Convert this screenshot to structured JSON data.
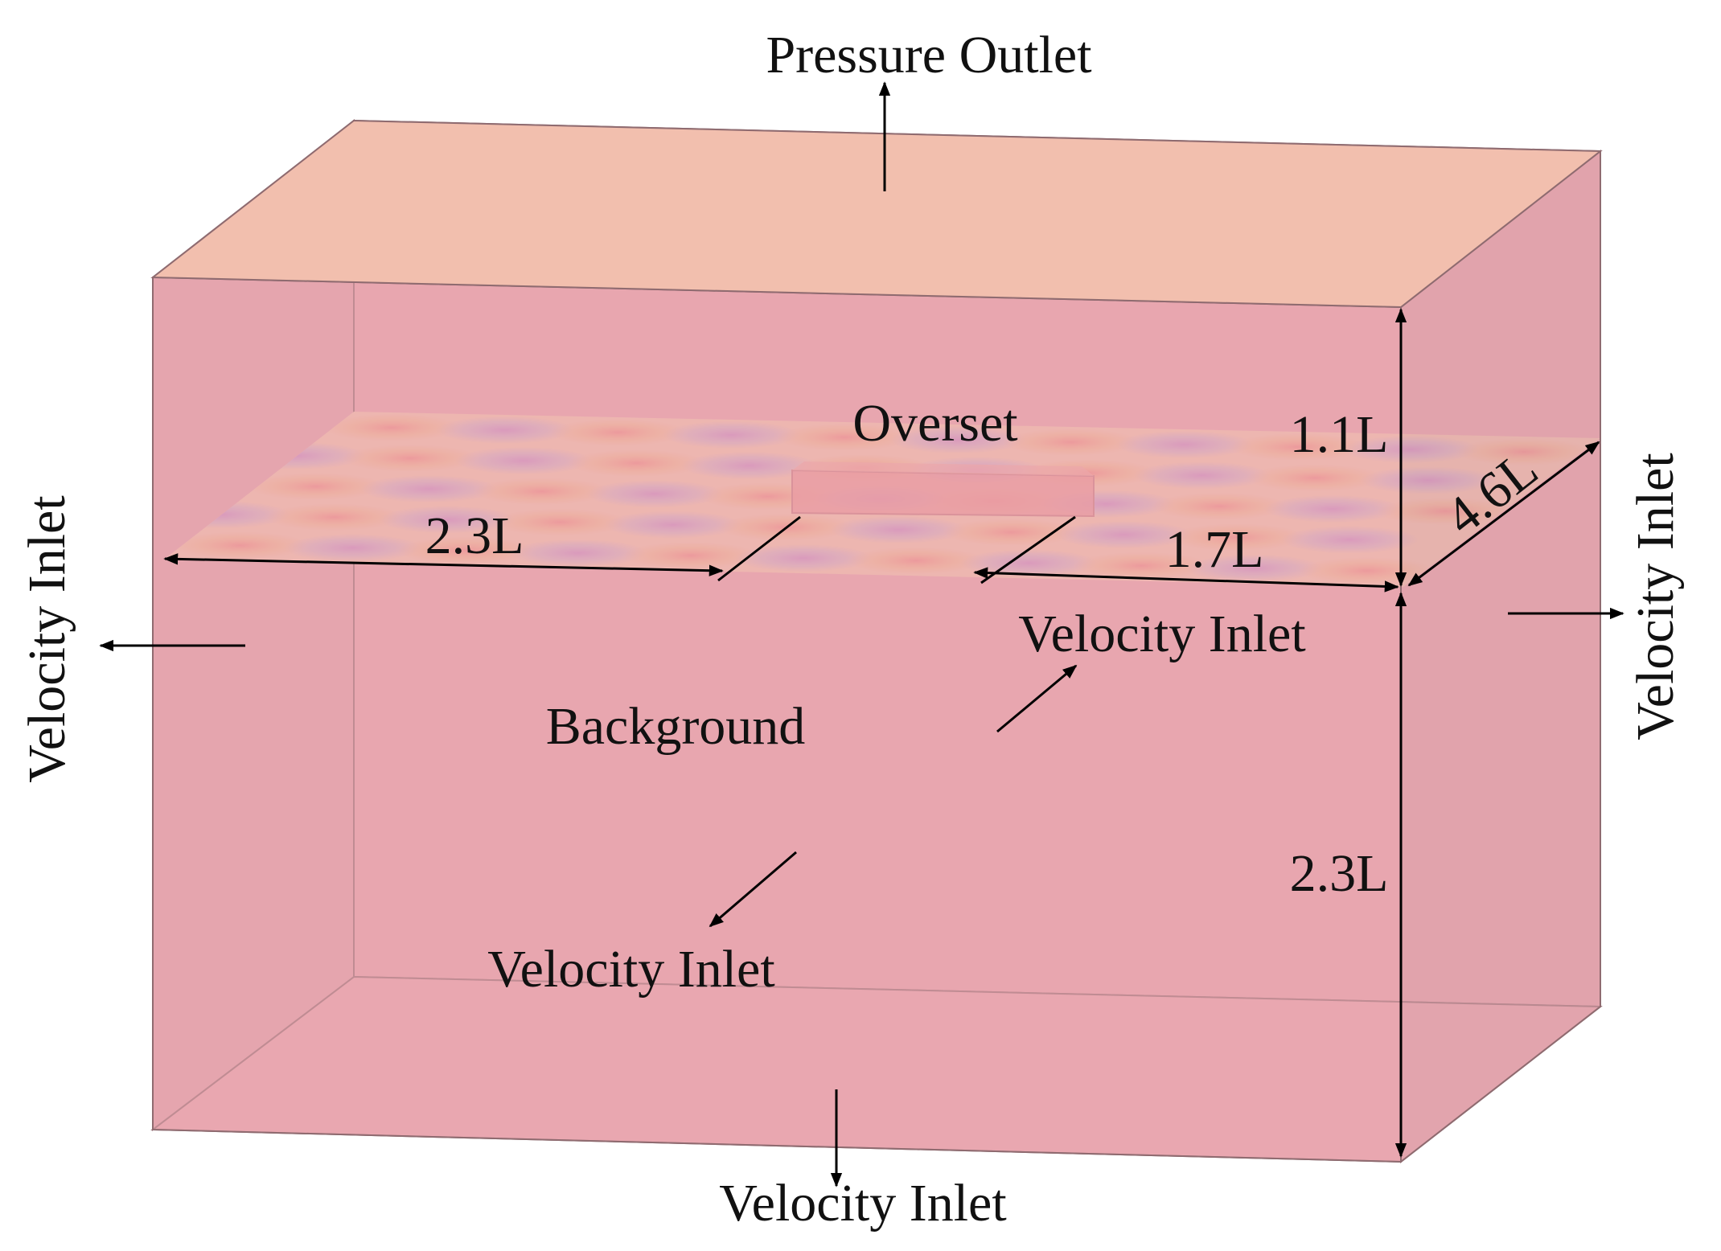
{
  "labels": {
    "pressure_outlet": "Pressure Outlet",
    "overset": "Overset",
    "background": "Background",
    "velocity_inlet_left": "Velocity Inlet",
    "velocity_inlet_right": "Velocity Inlet",
    "velocity_inlet_back": "Velocity Inlet",
    "velocity_inlet_front": "Velocity Inlet",
    "velocity_inlet_bottom": "Velocity Inlet"
  },
  "dimensions": {
    "upstream_length": "2.3L",
    "downstream_length": "1.7L",
    "width": "4.6L",
    "height_above": "1.1L",
    "depth_below": "2.3L"
  },
  "colors": {
    "top_face": "#f2bfae",
    "front_face": "#eaa8b1",
    "side_face": "#e0a6ad",
    "edge": "#8f6b70",
    "line": "#000000"
  }
}
